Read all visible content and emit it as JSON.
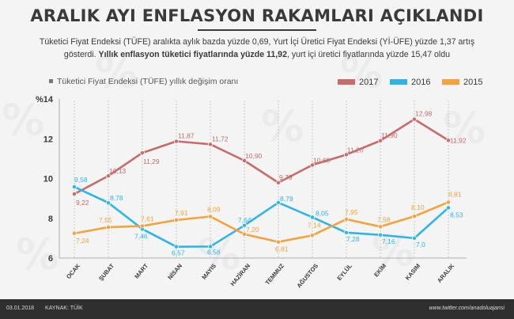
{
  "header": {
    "title": "ARALIK AYI ENFLASYON RAKAMLARI AÇIKLANDI",
    "subtitle_part1": "Tüketici Fiyat Endeksi (TÜFE) aralıkta aylık bazda yüzde 0,69, Yurt İçi Üretici Fiyat Endeksi (Yİ-ÜFE) yüzde 1,37 artış gösterdi.",
    "subtitle_bold": "Yıllık enflasyon tüketici fiyatlarında yüzde 11,92",
    "subtitle_part2": ", yurt içi üretici fiyatlarında yüzde 15,47 oldu"
  },
  "footer": {
    "date": "03.01.2018",
    "source": "KAYNAK: TÜİK",
    "url": "www.twitter.com/anadoluajansi"
  },
  "chart_data": {
    "type": "line",
    "caption": "Tüketici Fiyat Endeksi (TÜFE) yıllık değişim oranı",
    "y_unit_label": "%14",
    "y_ticks": [
      "6",
      "8",
      "10",
      "12"
    ],
    "ylim": [
      6,
      14
    ],
    "grid": "vertical dashed lines at each month",
    "legend_position": "top-right",
    "categories": [
      "OCAK",
      "ŞUBAT",
      "MART",
      "NİSAN",
      "MAYIS",
      "HAZİRAN",
      "TEMMUZ",
      "AĞUSTOS",
      "EYLÜL",
      "EKİM",
      "KASIM",
      "ARALIK"
    ],
    "series": [
      {
        "name": "2017",
        "color": "#c86b6b",
        "values": [
          9.22,
          10.13,
          11.29,
          11.87,
          11.72,
          10.9,
          9.79,
          10.68,
          11.2,
          11.9,
          12.98,
          11.92
        ],
        "labels": [
          "9,22",
          "10,13",
          "11,29",
          "11,87",
          "11,72",
          "10,90",
          "9,79",
          "10,68",
          "11,20",
          "11,90",
          "12,98",
          "11,92"
        ]
      },
      {
        "name": "2016",
        "color": "#2fb4e6",
        "values": [
          9.58,
          8.78,
          7.46,
          6.57,
          6.58,
          7.64,
          8.79,
          8.05,
          7.28,
          7.16,
          7.0,
          8.53
        ],
        "labels": [
          "9,58",
          "8,78",
          "7,46",
          "6,57",
          "6,58",
          "7,64",
          "8,79",
          "8,05",
          "7,28",
          "7,16",
          "7,0",
          "8,53"
        ]
      },
      {
        "name": "2015",
        "color": "#f4a23b",
        "values": [
          7.24,
          7.55,
          7.61,
          7.91,
          8.09,
          7.2,
          6.81,
          7.14,
          7.95,
          7.58,
          8.1,
          8.81
        ],
        "labels": [
          "7,24",
          "7,55",
          "7,61",
          "7,91",
          "8,09",
          "7,20",
          "6,81",
          "7,14",
          "7,95",
          "7,58",
          "8,10",
          "8,81"
        ]
      }
    ]
  }
}
